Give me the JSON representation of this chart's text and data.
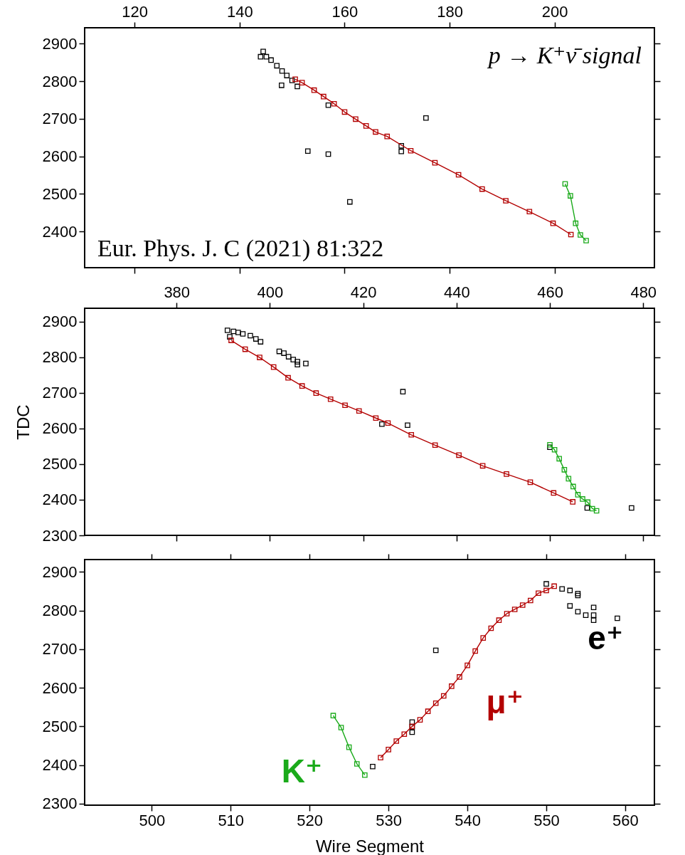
{
  "chart_data": [
    {
      "type": "scatter",
      "marker": "square",
      "annotations": [
        "p → K⁺ν̄ signal",
        "Eur. Phys. J. C (2021) 81:322"
      ],
      "xlim": [
        110.5,
        219
      ],
      "xticks": [
        120,
        140,
        160,
        180,
        200
      ],
      "ylim": [
        2304,
        2942
      ],
      "yticks": [
        2400,
        2500,
        2600,
        2700,
        2800,
        2900
      ],
      "series": [
        {
          "type": "scatter",
          "color": "#000000",
          "x": [
            144.5,
            144,
            145.1,
            146,
            147.1,
            148.1,
            149,
            150,
            148,
            151,
            156.9,
            153,
            156.9,
            161,
            175.5,
            170.8,
            170.8
          ],
          "values": [
            2879,
            2865,
            2865,
            2856,
            2841,
            2827,
            2815,
            2802,
            2789,
            2786,
            2736,
            2614,
            2606,
            2479,
            2702,
            2628,
            2613
          ]
        },
        {
          "type": "line",
          "color": "#b30000",
          "x": [
            150.6,
            151.9,
            154.2,
            156,
            158,
            160,
            162.1,
            164.1,
            165.9,
            168.1,
            172.6,
            177.2,
            181.7,
            186.2,
            190.7,
            195.2,
            199.7,
            203.1
          ],
          "values": [
            2805,
            2796,
            2776,
            2759,
            2740,
            2718,
            2699,
            2681,
            2665,
            2653,
            2615,
            2583,
            2551,
            2513,
            2482,
            2453,
            2422,
            2392
          ]
        },
        {
          "type": "line",
          "color": "#1aaa1a",
          "x": [
            202,
            203,
            204,
            204.9,
            206
          ],
          "values": [
            2527,
            2495,
            2422,
            2391,
            2376
          ]
        }
      ]
    },
    {
      "type": "scatter",
      "marker": "square",
      "ylabel": "TDC",
      "xlim": [
        360.3,
        482.4
      ],
      "xticks": [
        380,
        400,
        420,
        440,
        460,
        480
      ],
      "ylim": [
        2300,
        2937
      ],
      "yticks": [
        2300,
        2400,
        2500,
        2600,
        2700,
        2800,
        2900
      ],
      "series": [
        {
          "type": "scatter",
          "color": "#000000",
          "x": [
            390.9,
            392.2,
            393.2,
            394.2,
            395.8,
            397,
            398,
            391.4,
            402,
            403,
            404,
            405,
            405.9,
            405.9,
            407.7,
            428.5,
            424,
            429.5,
            460,
            468,
            477.5
          ],
          "values": [
            2875,
            2872,
            2869,
            2865,
            2860,
            2851,
            2843,
            2857,
            2816,
            2811,
            2801,
            2793,
            2787,
            2779,
            2782,
            2703,
            2612,
            2609,
            2547,
            2377,
            2377
          ]
        },
        {
          "type": "line",
          "color": "#b30000",
          "x": [
            391.7,
            394.7,
            397.8,
            400.8,
            403.9,
            406.9,
            409.9,
            413,
            416.1,
            419.1,
            422.7,
            425.3,
            430.3,
            435.4,
            440.5,
            445.6,
            450.7,
            455.8,
            460.8,
            464.9
          ],
          "values": [
            2847,
            2822,
            2799,
            2772,
            2742,
            2719,
            2699,
            2682,
            2665,
            2649,
            2629,
            2615,
            2582,
            2553,
            2525,
            2495,
            2472,
            2449,
            2419,
            2394
          ]
        },
        {
          "type": "line",
          "color": "#1aaa1a",
          "x": [
            460,
            461,
            462,
            463.1,
            464,
            465,
            466,
            467,
            468.1,
            469.1,
            470
          ],
          "values": [
            2554,
            2540,
            2515,
            2484,
            2459,
            2437,
            2414,
            2402,
            2393,
            2375,
            2369
          ]
        }
      ]
    },
    {
      "type": "scatter",
      "marker": "square",
      "xlabel": "Wire Segment",
      "xlim": [
        491.5,
        563.7
      ],
      "xticks": [
        500,
        510,
        520,
        530,
        540,
        550,
        560
      ],
      "ylim": [
        2296,
        2932
      ],
      "yticks": [
        2300,
        2400,
        2500,
        2600,
        2700,
        2800,
        2900
      ],
      "series": [
        {
          "type": "scatter",
          "name": "e⁺",
          "color": "#000000",
          "x": [
            528,
            533,
            533,
            533,
            536,
            550,
            552,
            553,
            554,
            554,
            553,
            554,
            555,
            556,
            556,
            556,
            559
          ],
          "values": [
            2396,
            2511,
            2499,
            2485,
            2697,
            2869,
            2856,
            2852,
            2844,
            2839,
            2812,
            2797,
            2788,
            2788,
            2775,
            2808,
            2780
          ]
        },
        {
          "type": "line",
          "name": "μ⁺",
          "color": "#b30000",
          "x": [
            529,
            530,
            531,
            532,
            533,
            534,
            535,
            536,
            537,
            538,
            539,
            540,
            541,
            542,
            543,
            544,
            545,
            546,
            547,
            548,
            549,
            550,
            551
          ],
          "values": [
            2419,
            2440,
            2462,
            2480,
            2500,
            2517,
            2539,
            2560,
            2579,
            2604,
            2628,
            2658,
            2695,
            2729,
            2754,
            2775,
            2792,
            2803,
            2814,
            2826,
            2845,
            2852,
            2863
          ]
        },
        {
          "type": "line",
          "name": "K⁺",
          "color": "#1aaa1a",
          "x": [
            523,
            524,
            525,
            526,
            527
          ],
          "values": [
            2528,
            2497,
            2446,
            2403,
            2374
          ]
        }
      ]
    }
  ]
}
